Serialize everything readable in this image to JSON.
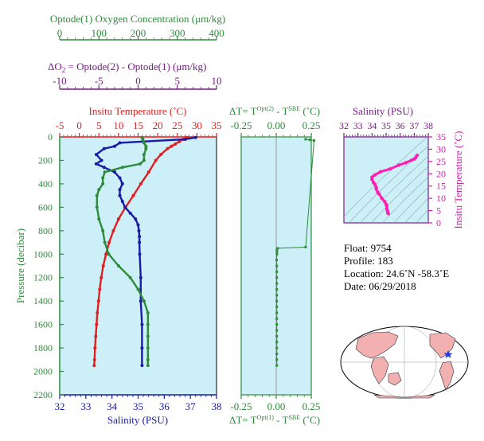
{
  "chart_data": [
    {
      "type": "line",
      "panel": "profile",
      "axes": {
        "oxygen": {
          "label": "Optode(1) Oxygen Concentration (μm/kg)",
          "ticks": [
            "0",
            "100",
            "200",
            "300",
            "400"
          ],
          "range": [
            0,
            400
          ],
          "color": "#2f8a3b"
        },
        "delta_o2": {
          "label_prefix": "ΔO",
          "label_sub": "2",
          "label_rest": " = Optode(2) - Optode(1)     (μm/kg)",
          "ticks": [
            "-10",
            "-5",
            "0",
            "5",
            "10"
          ],
          "range": [
            -10,
            10
          ],
          "color": "#7a1a8a"
        },
        "temperature": {
          "label": "Insitu Temperature (˚C)",
          "ticks": [
            "-5",
            "0",
            "5",
            "10",
            "15",
            "20",
            "25",
            "30",
            "35"
          ],
          "range": [
            -5,
            35
          ],
          "color": "#e02020"
        },
        "salinity": {
          "label": "Salinity (PSU)",
          "ticks": [
            "32",
            "33",
            "34",
            "35",
            "36",
            "37",
            "38"
          ],
          "range": [
            32,
            38
          ],
          "color": "#1a1aa6"
        },
        "pressure": {
          "label": "Pressure (decibar)",
          "ticks": [
            "0",
            "200",
            "400",
            "600",
            "800",
            "1000",
            "1200",
            "1400",
            "1600",
            "1800",
            "2000",
            "2200"
          ],
          "range": [
            0,
            2200
          ],
          "color": "#2f8a3b"
        }
      },
      "series": [
        {
          "name": "temperature",
          "color": "#e02020",
          "p": [
            5,
            20,
            40,
            60,
            80,
            100,
            150,
            200,
            300,
            400,
            500,
            600,
            700,
            800,
            900,
            1000,
            1100,
            1200,
            1300,
            1400,
            1500,
            1600,
            1700,
            1800,
            1900,
            1950
          ],
          "v": [
            27.5,
            26.5,
            25.5,
            24.5,
            23.5,
            22.5,
            20.8,
            19.5,
            17.7,
            15.7,
            13.8,
            11.8,
            10.0,
            8.7,
            7.6,
            6.8,
            6.1,
            5.6,
            5.2,
            4.9,
            4.6,
            4.4,
            4.2,
            4.0,
            3.9,
            3.8
          ]
        },
        {
          "name": "salinity",
          "color": "#1a1aa6",
          "p": [
            5,
            20,
            50,
            80,
            100,
            150,
            200,
            230,
            260,
            300,
            350,
            400,
            450,
            500,
            550,
            600,
            650,
            700,
            750,
            800,
            850,
            900,
            1000,
            1200,
            1400,
            1600,
            1800,
            1950
          ],
          "v": [
            37.2,
            36.8,
            34.3,
            34.1,
            33.7,
            33.4,
            33.6,
            33.4,
            33.7,
            34.1,
            34.3,
            34.4,
            34.3,
            34.3,
            34.4,
            34.5,
            34.7,
            34.9,
            35.0,
            35.03,
            35.05,
            35.05,
            35.06,
            35.1,
            35.1,
            35.15,
            35.15,
            35.15
          ]
        },
        {
          "name": "oxygen",
          "color": "#2f8a3b",
          "p": [
            5,
            20,
            50,
            80,
            100,
            150,
            200,
            230,
            260,
            300,
            350,
            400,
            450,
            500,
            600,
            700,
            800,
            900,
            1000,
            1100,
            1200,
            1300,
            1400,
            1500,
            1600,
            1700,
            1800,
            1900,
            1950
          ],
          "v": [
            210,
            212,
            215,
            220,
            220,
            215,
            215,
            205,
            160,
            115,
            110,
            110,
            100,
            95,
            95,
            100,
            110,
            115,
            125,
            150,
            180,
            200,
            215,
            225,
            225,
            225,
            225,
            225,
            225
          ]
        }
      ]
    },
    {
      "type": "scatter",
      "panel": "delta_t",
      "top_label_prefix": "ΔT= T",
      "top_label_sup1": "Opt(2)",
      "top_label_mid": " - T",
      "top_label_sup2": "SBE",
      "top_label_suffix": " (˚C)",
      "bottom_label_prefix": "ΔT= T",
      "bottom_label_sup1": "Opt(1)",
      "bottom_label_mid": " - T",
      "bottom_label_sup2": "SBE",
      "bottom_label_suffix": " (˚C)",
      "ticks": [
        "-0.25",
        "0.00",
        "0.25"
      ],
      "range": [
        -0.25,
        0.25
      ],
      "color": "#2f8a3b",
      "p": [
        20,
        25,
        30,
        940,
        950,
        960,
        980,
        1000,
        1050,
        1100,
        1150,
        1200,
        1250,
        1300,
        1350,
        1400,
        1450,
        1500,
        1550,
        1600,
        1650,
        1700,
        1750,
        1800,
        1850,
        1900,
        1950
      ],
      "v": [
        0.21,
        0.24,
        0.27,
        0.21,
        0.01,
        0.005,
        0.005,
        0.005,
        0.003,
        0.004,
        0.004,
        0.004,
        0.004,
        0.004,
        0.004,
        0.004,
        0.004,
        0.004,
        0.004,
        0.004,
        0.004,
        0.004,
        0.004,
        0.004,
        0.004,
        0.004,
        0.004
      ]
    },
    {
      "type": "scatter",
      "panel": "ts_diagram",
      "x_label": "Salinity (PSU)",
      "x_ticks": [
        "32",
        "33",
        "34",
        "35",
        "36",
        "37",
        "38"
      ],
      "x_range": [
        32,
        38
      ],
      "x_color": "#7a1a8a",
      "y_label": "Insitu Temperature (˚C)",
      "y_ticks": [
        "0",
        "5",
        "10",
        "15",
        "20",
        "25",
        "30",
        "35"
      ],
      "y_range": [
        0,
        35
      ],
      "y_color": "#cc22aa",
      "s": [
        35.15,
        35.12,
        35.1,
        35.06,
        35.05,
        35.0,
        34.9,
        34.7,
        34.5,
        34.4,
        34.3,
        34.3,
        34.2,
        34.1,
        34.0,
        34.0,
        34.2,
        34.6,
        35.3,
        35.9,
        36.4,
        36.8,
        37.1,
        37.2,
        37.0
      ],
      "t": [
        3.8,
        4.2,
        4.9,
        5.6,
        6.8,
        7.6,
        8.7,
        10.0,
        11.8,
        12.5,
        13.8,
        14.5,
        15.7,
        16.5,
        17.7,
        18.6,
        19.5,
        20.8,
        22.0,
        23.5,
        24.5,
        25.5,
        26.5,
        27.5,
        26.0
      ]
    }
  ],
  "info": {
    "float": "Float:  9754",
    "profile": "Profile:  183",
    "location": "Location:  24.6˚N  -58.3˚E",
    "date": "Date:  06/29/2018"
  },
  "map": {
    "marker": "star",
    "marker_color": "#1f3fd8",
    "land_color": "#f2b0b0",
    "ocean_color": "#ffffff"
  }
}
